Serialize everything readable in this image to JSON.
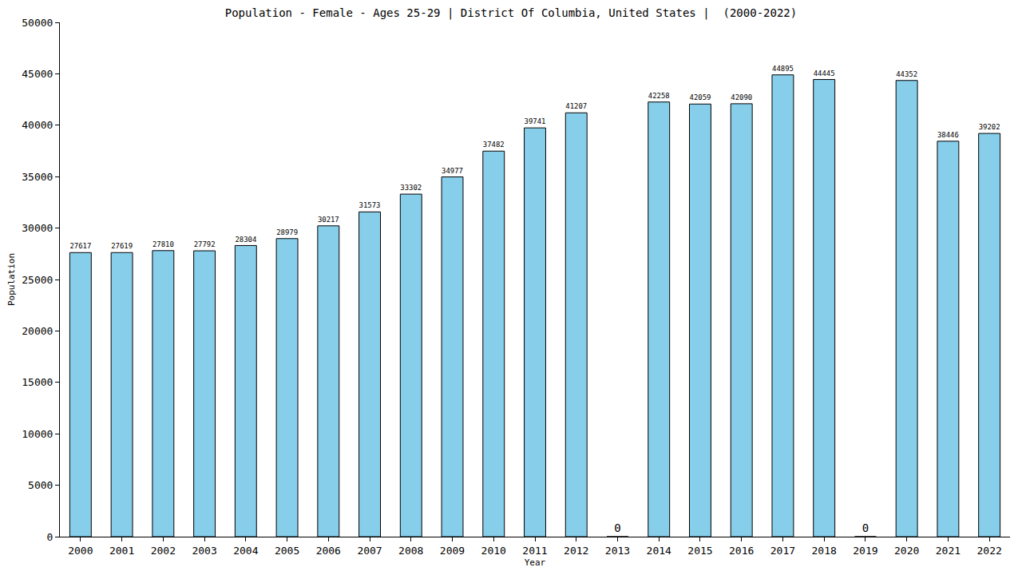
{
  "chart_data": {
    "type": "bar",
    "title": "Population - Female - Ages 25-29 | District Of Columbia, United States |  (2000-2022)",
    "x_label": "Year",
    "y_label": "Population",
    "categories": [
      "2000",
      "2001",
      "2002",
      "2003",
      "2004",
      "2005",
      "2006",
      "2007",
      "2008",
      "2009",
      "2010",
      "2011",
      "2012",
      "2013",
      "2014",
      "2015",
      "2016",
      "2017",
      "2018",
      "2019",
      "2020",
      "2021",
      "2022"
    ],
    "values": [
      27617,
      27619,
      27810,
      27792,
      28304,
      28979,
      30217,
      31573,
      33302,
      34977,
      37482,
      39741,
      41207,
      0,
      42258,
      42059,
      42090,
      44895,
      44445,
      0,
      44352,
      38446,
      39202
    ],
    "color": "#87ceeb",
    "ylim": [
      0,
      50000
    ],
    "yticks": [
      0,
      5000,
      10000,
      15000,
      20000,
      25000,
      30000,
      35000,
      40000,
      45000,
      50000
    ],
    "grid": false,
    "data_labels": true
  }
}
